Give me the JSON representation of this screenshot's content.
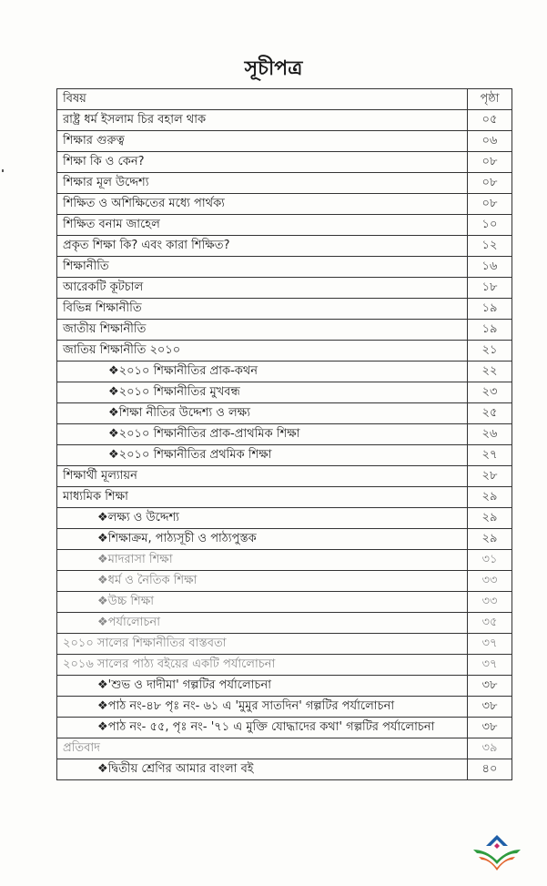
{
  "title": "সূচীপত্র",
  "header": {
    "topic": "বিষয়",
    "page": "পৃষ্ঠা"
  },
  "rows": [
    {
      "topic": "রাষ্ট্র ধর্ম ইসলাম চির বহাল থাক",
      "page": "০৫",
      "level": 0
    },
    {
      "topic": "শিক্ষার গুরুত্ব",
      "page": "০৬",
      "level": 0
    },
    {
      "topic": "শিক্ষা কি ও কেন?",
      "page": "০৮",
      "level": 0
    },
    {
      "topic": "শিক্ষার মূল উদ্দেশ্য",
      "page": "০৮",
      "level": 0
    },
    {
      "topic": "শিক্ষিত ও অশিক্ষিতের মধ্যে পার্থক্য",
      "page": "০৮",
      "level": 0
    },
    {
      "topic": "শিক্ষিত বনাম জাহেল",
      "page": "১০",
      "level": 0
    },
    {
      "topic": "প্রকৃত শিক্ষা কি? এবং  কারা শিক্ষিত?",
      "page": "১২",
      "level": 0
    },
    {
      "topic": "শিক্ষানীতি",
      "page": "১৬",
      "level": 0
    },
    {
      "topic": "আরেকটি কূটচাল",
      "page": "১৮",
      "level": 0
    },
    {
      "topic": "বিভিন্ন শিক্ষানীতি",
      "page": "১৯",
      "level": 0
    },
    {
      "topic": "জাতীয় শিক্ষানীতি",
      "page": "১৯",
      "level": 0
    },
    {
      "topic": "জাতিয় শিক্ষানীতি ২০১০",
      "page": "২১",
      "level": 0
    },
    {
      "topic": "❖২০১০ শিক্ষানীতির প্রাক-কথন",
      "page": "২২",
      "level": 1
    },
    {
      "topic": "❖২০১০ শিক্ষানীতির মুখবন্ধ",
      "page": "২৩",
      "level": 1
    },
    {
      "topic": "❖শিক্ষা নীতির উদ্দেশ্য ও লক্ষ্য",
      "page": "২৫",
      "level": 1
    },
    {
      "topic": "❖২০১০ শিক্ষানীতির প্রাক-প্রাথমিক শিক্ষা",
      "page": "২৬",
      "level": 1
    },
    {
      "topic": "❖২০১০ শিক্ষানীতির প্রথমিক শিক্ষা",
      "page": "২৭",
      "level": 1
    },
    {
      "topic": "শিক্ষার্থী মূল্যায়ন",
      "page": "২৮",
      "level": 0
    },
    {
      "topic": "মাধ্যমিক শিক্ষা",
      "page": "২৯",
      "level": 0
    },
    {
      "topic": "❖লক্ষ্য ও উদ্দেশ্য",
      "page": "২৯",
      "level": 2
    },
    {
      "topic": "❖শিক্ষাক্রম, পাঠ্যসূচী ও পাঠ্যপুস্তক",
      "page": "২৯",
      "level": 2
    },
    {
      "topic": "❖মাদরাসা শিক্ষা",
      "page": "৩১",
      "level": 2
    },
    {
      "topic": "❖ধর্ম ও নৈতিক শিক্ষা",
      "page": "৩৩",
      "level": 2
    },
    {
      "topic": "❖উচ্চ শিক্ষা",
      "page": "৩৩",
      "level": 2
    },
    {
      "topic": "❖পর্যালোচনা",
      "page": "৩৫",
      "level": 2
    },
    {
      "topic": "২০১০ সালের শিক্ষানীতির বাস্তবতা",
      "page": "৩৭",
      "level": 0
    },
    {
      "topic": "২০১৬ সালের পাঠ্য বইয়ের একটি পর্যালোচনা",
      "page": "৩৭",
      "level": 0
    },
    {
      "topic": "❖'শুভ ও দাদীমা' গল্পটির পর্যালোচনা",
      "page": "৩৮",
      "level": 2
    },
    {
      "topic": "❖পাঠ নং-৪৮ পৃঃ নং- ৬১ এ 'মুমুর সাতদিন' গল্পটির পর্যালোচনা",
      "page": "৩৮",
      "level": 2
    },
    {
      "topic": "❖পাঠ নং- ৫৫, পৃঃ নং- '৭১ এ মুক্তি যোদ্ধাদের কথা' গল্পটির পর্যালোচনা",
      "page": "৩৮",
      "level": 2
    },
    {
      "topic": "প্রতিবাদ",
      "page": "৩৯",
      "level": 0
    },
    {
      "topic": "❖দ্বিতীয় শ্রেণির আমার বাংলা বই",
      "page": "৪০",
      "level": 2
    }
  ],
  "logo": {
    "name": "book-logo",
    "colors": [
      "#1f5fa8",
      "#2e9b3e",
      "#e2632b",
      "#c8286a"
    ]
  }
}
